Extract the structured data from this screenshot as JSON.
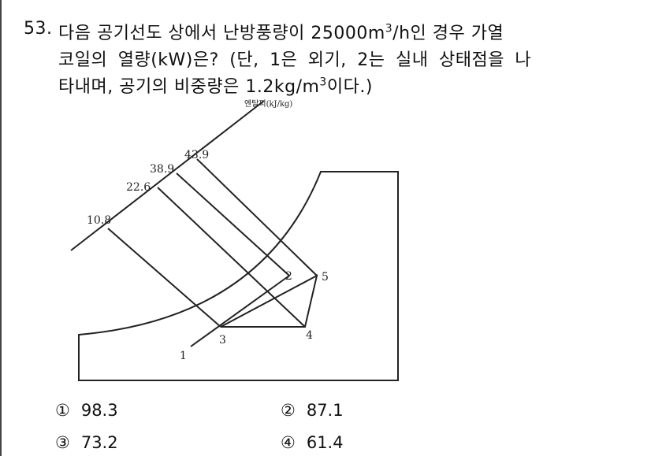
{
  "question": {
    "number": "53.",
    "lines": [
      [
        "다음 공기선도 상에서 난방풍량이 25000m",
        "3",
        "/h인 경우 가열"
      ],
      [
        "코일의 열량(kW)은? (단, 1은 외기, 2는 실내 상태점을 나"
      ],
      [
        "타내며, 공기의 비중량은 1.2kg/m",
        "3",
        "이다.)"
      ]
    ]
  },
  "diagram": {
    "axis_label": "엔탈피(kJ/kg)",
    "enthalpy_labels": [
      "43.9",
      "38.9",
      "22.6",
      "10.8"
    ],
    "points": [
      "1",
      "2",
      "3",
      "4",
      "5"
    ]
  },
  "options": [
    {
      "marker": "①",
      "text": "98.3"
    },
    {
      "marker": "②",
      "text": "87.1"
    },
    {
      "marker": "③",
      "text": "73.2"
    },
    {
      "marker": "④",
      "text": "61.4"
    }
  ]
}
